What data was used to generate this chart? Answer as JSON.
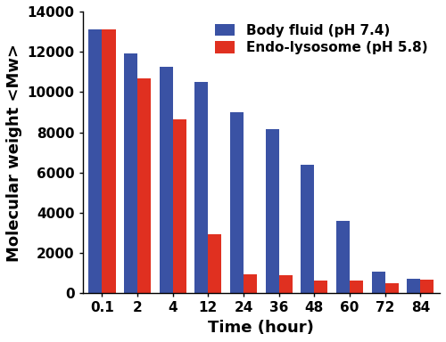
{
  "categories": [
    "0.1",
    "2",
    "4",
    "12",
    "24",
    "36",
    "48",
    "60",
    "72",
    "84"
  ],
  "blue_values": [
    13100,
    11900,
    11250,
    10500,
    9000,
    8150,
    6400,
    3600,
    1100,
    750
  ],
  "red_values": [
    13100,
    10700,
    8650,
    2950,
    950,
    900,
    650,
    650,
    500,
    700
  ],
  "blue_color": "#3A52A4",
  "red_color": "#E03020",
  "ylabel": "Molecular weight <Mw>",
  "xlabel": "Time (hour)",
  "ylim": [
    0,
    14000
  ],
  "yticks": [
    0,
    2000,
    4000,
    6000,
    8000,
    10000,
    12000,
    14000
  ],
  "legend_labels": [
    "Body fluid (pH 7.4)",
    "Endo-lysosome (pH 5.8)"
  ],
  "bar_width": 0.38,
  "label_fontsize": 13,
  "tick_fontsize": 11,
  "legend_fontsize": 11,
  "bg_color": "#FFFFFF"
}
